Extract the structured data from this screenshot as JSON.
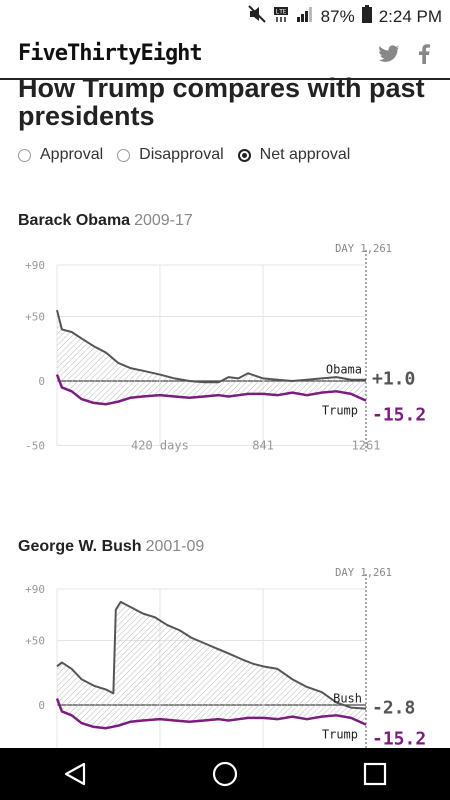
{
  "status": {
    "battery": "87%",
    "time": "2:24 PM"
  },
  "header": {
    "brand": "FiveThirtyEight"
  },
  "title": "How Trump compares with past presidents",
  "radios": [
    {
      "label": "Approval",
      "selected": false
    },
    {
      "label": "Disapproval",
      "selected": false
    },
    {
      "label": "Net approval",
      "selected": true
    }
  ],
  "charts": [
    {
      "president": "Barack Obama",
      "years": "2009-17",
      "day_marker": "DAY 1,261",
      "y_ticks": [
        "+90",
        "+50",
        "0",
        "-50"
      ],
      "x_ticks": [
        "420 days",
        "841",
        "1261"
      ],
      "president_label": "Obama",
      "president_value": "+1.0",
      "trump_label": "Trump",
      "trump_value": "-15.2"
    },
    {
      "president": "George W. Bush",
      "years": "2001-09",
      "day_marker": "DAY 1,261",
      "y_ticks": [
        "+90",
        "+50",
        "0"
      ],
      "x_ticks": [],
      "president_label": "Bush",
      "president_value": "-2.8",
      "trump_label": "Trump",
      "trump_value": "-15.2"
    }
  ],
  "chart_data": [
    {
      "type": "line",
      "title": "Barack Obama 2009-17",
      "xlim": [
        0,
        1261
      ],
      "ylim": [
        -50,
        90
      ],
      "series": [
        {
          "name": "Obama",
          "x": [
            0,
            20,
            60,
            100,
            150,
            200,
            250,
            300,
            350,
            420,
            480,
            540,
            600,
            660,
            700,
            740,
            780,
            841,
            900,
            960,
            1020,
            1080,
            1140,
            1200,
            1261
          ],
          "y": [
            55,
            40,
            38,
            33,
            27,
            22,
            14,
            10,
            8,
            5,
            2,
            0,
            -1,
            -1,
            3,
            2,
            6,
            2,
            1,
            0,
            1,
            2,
            3,
            1,
            1.0
          ]
        },
        {
          "name": "Trump",
          "x": [
            0,
            20,
            60,
            100,
            150,
            200,
            250,
            300,
            350,
            420,
            480,
            540,
            600,
            660,
            700,
            740,
            780,
            841,
            900,
            960,
            1020,
            1080,
            1140,
            1200,
            1261
          ],
          "y": [
            5,
            -5,
            -8,
            -14,
            -17,
            -18,
            -16,
            -13,
            -12,
            -11,
            -12,
            -13,
            -12,
            -11,
            -12,
            -11,
            -10,
            -10,
            -11,
            -9,
            -11,
            -9,
            -8,
            -10,
            -15.2
          ]
        }
      ]
    },
    {
      "type": "line",
      "title": "George W. Bush 2001-09",
      "xlim": [
        0,
        1261
      ],
      "ylim": [
        -50,
        90
      ],
      "series": [
        {
          "name": "Bush",
          "x": [
            0,
            20,
            60,
            100,
            150,
            200,
            230,
            240,
            260,
            300,
            350,
            400,
            450,
            500,
            550,
            600,
            650,
            700,
            760,
            800,
            841,
            900,
            960,
            1020,
            1080,
            1140,
            1200,
            1261
          ],
          "y": [
            30,
            33,
            28,
            20,
            15,
            12,
            9,
            74,
            80,
            76,
            71,
            68,
            62,
            58,
            52,
            48,
            44,
            40,
            35,
            32,
            30,
            28,
            20,
            14,
            10,
            2,
            -2,
            -2.8
          ]
        },
        {
          "name": "Trump",
          "x": [
            0,
            20,
            60,
            100,
            150,
            200,
            250,
            300,
            350,
            420,
            480,
            540,
            600,
            660,
            700,
            740,
            780,
            841,
            900,
            960,
            1020,
            1080,
            1140,
            1200,
            1261
          ],
          "y": [
            5,
            -5,
            -8,
            -14,
            -17,
            -18,
            -16,
            -13,
            -12,
            -11,
            -12,
            -13,
            -12,
            -11,
            -12,
            -11,
            -10,
            -10,
            -11,
            -9,
            -11,
            -9,
            -8,
            -10,
            -15.2
          ]
        }
      ]
    }
  ]
}
